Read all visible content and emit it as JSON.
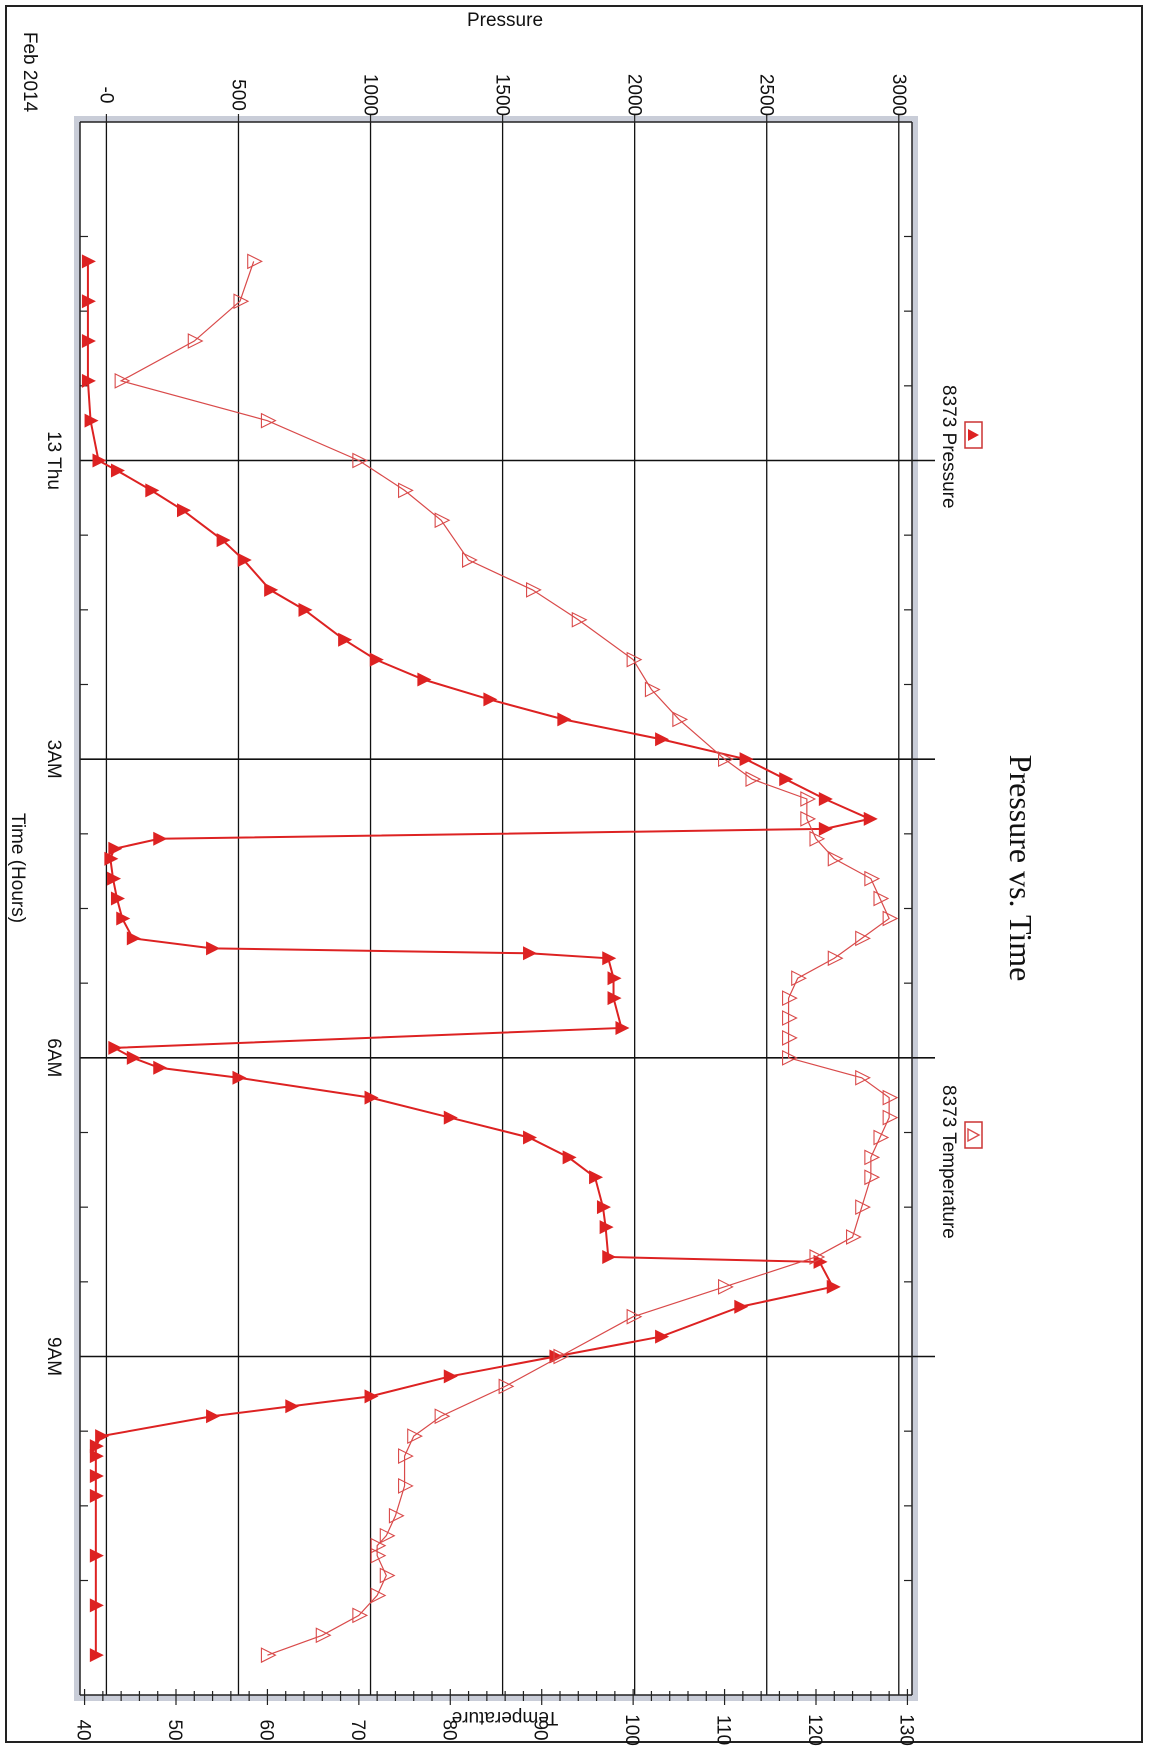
{
  "chart_data": {
    "type": "line",
    "title": "Pressure vs. Time",
    "xlabel": "Time (Hours)",
    "ylabel_left": "Pressure",
    "ylabel_right": "Temperature",
    "date_label": "Feb 2014",
    "x_unit": "hours",
    "xlim": [
      -3.4,
      12.4
    ],
    "y_left_lim": [
      -100,
      3050
    ],
    "y_right_lim": [
      39.5,
      130.5
    ],
    "y_left_ticks": [
      0,
      500,
      1000,
      1500,
      2000,
      2500,
      3000
    ],
    "y_left_tick_labels": [
      "-0",
      "500",
      "1000",
      "1500",
      "2000",
      "2500",
      "3000"
    ],
    "y_right_ticks": [
      40,
      50,
      60,
      70,
      80,
      90,
      100,
      110,
      120,
      130
    ],
    "x_major_ticks": [
      0,
      3,
      6,
      9
    ],
    "x_tick_labels": [
      "13 Thu",
      "3AM",
      "6AM",
      "9AM"
    ],
    "x_minor_ticks": [
      -2.25,
      -1.5,
      -0.75,
      0.75,
      1.5,
      2.25,
      3.75,
      4.5,
      5.25,
      6.75,
      7.5,
      8.25,
      9.75,
      10.5,
      11.25
    ],
    "grid": true,
    "legend_placement": "top",
    "colors": {
      "pressure": "#dd2222",
      "temperature": "#d94a4a",
      "grid": "#111111",
      "frame_shadow": "#c9cdd8"
    },
    "series": [
      {
        "name": "8373 Pressure",
        "axis": "left",
        "marker": "filled-triangle",
        "x": [
          -2.0,
          -1.6,
          -1.2,
          -0.8,
          -0.4,
          0.0,
          0.1,
          0.3,
          0.5,
          0.8,
          1.0,
          1.3,
          1.5,
          1.8,
          2.0,
          2.2,
          2.4,
          2.6,
          2.8,
          3.0,
          3.2,
          3.4,
          3.6,
          3.7,
          3.8,
          3.9,
          4.0,
          4.2,
          4.4,
          4.6,
          4.8,
          4.9,
          4.95,
          5.0,
          5.2,
          5.4,
          5.7,
          5.9,
          6.0,
          6.1,
          6.2,
          6.4,
          6.6,
          6.8,
          7.0,
          7.2,
          7.5,
          7.7,
          8.0,
          8.05,
          8.3,
          8.5,
          8.8,
          9.0,
          9.2,
          9.4,
          9.5,
          9.6,
          9.8,
          9.9,
          10.0,
          10.2,
          10.4,
          11.0,
          11.5,
          12.0
        ],
        "y": [
          -70,
          -70,
          -70,
          -70,
          -60,
          -30,
          40,
          170,
          290,
          440,
          520,
          620,
          750,
          900,
          1020,
          1200,
          1450,
          1730,
          2100,
          2420,
          2570,
          2720,
          2890,
          2720,
          200,
          30,
          15,
          25,
          40,
          60,
          100,
          400,
          1600,
          1900,
          1920,
          1920,
          1950,
          30,
          100,
          200,
          500,
          1000,
          1300,
          1600,
          1750,
          1850,
          1880,
          1890,
          1900,
          2700,
          2750,
          2400,
          2100,
          1700,
          1300,
          1000,
          700,
          400,
          -20,
          -40,
          -40,
          -40,
          -40,
          -40,
          -40,
          -40
        ]
      },
      {
        "name": "8373 Temperature",
        "axis": "right",
        "marker": "open-triangle",
        "x": [
          -2.0,
          -1.6,
          -1.2,
          -0.8,
          -0.4,
          0.0,
          0.3,
          0.6,
          1.0,
          1.3,
          1.6,
          2.0,
          2.3,
          2.6,
          3.0,
          3.2,
          3.4,
          3.6,
          3.8,
          4.0,
          4.2,
          4.4,
          4.6,
          4.8,
          5.0,
          5.2,
          5.4,
          5.6,
          5.8,
          6.0,
          6.2,
          6.4,
          6.6,
          6.8,
          7.0,
          7.2,
          7.5,
          7.8,
          8.0,
          8.3,
          8.6,
          9.0,
          9.3,
          9.6,
          9.8,
          10.0,
          10.3,
          10.6,
          10.8,
          10.9,
          11.0,
          11.2,
          11.4,
          11.6,
          11.8,
          12.0
        ],
        "y": [
          58.5,
          57,
          52,
          44,
          60,
          70,
          75,
          79,
          82,
          89,
          94,
          100,
          102,
          105,
          110,
          113,
          119,
          119,
          120,
          122,
          126,
          127,
          128,
          125,
          122,
          118,
          117,
          117,
          117,
          117,
          125,
          128,
          128,
          127,
          126,
          126,
          125,
          124,
          120,
          110,
          100,
          92,
          86,
          79,
          76,
          75,
          75,
          74,
          73,
          72,
          72,
          73,
          72,
          70,
          66,
          60
        ]
      }
    ]
  }
}
